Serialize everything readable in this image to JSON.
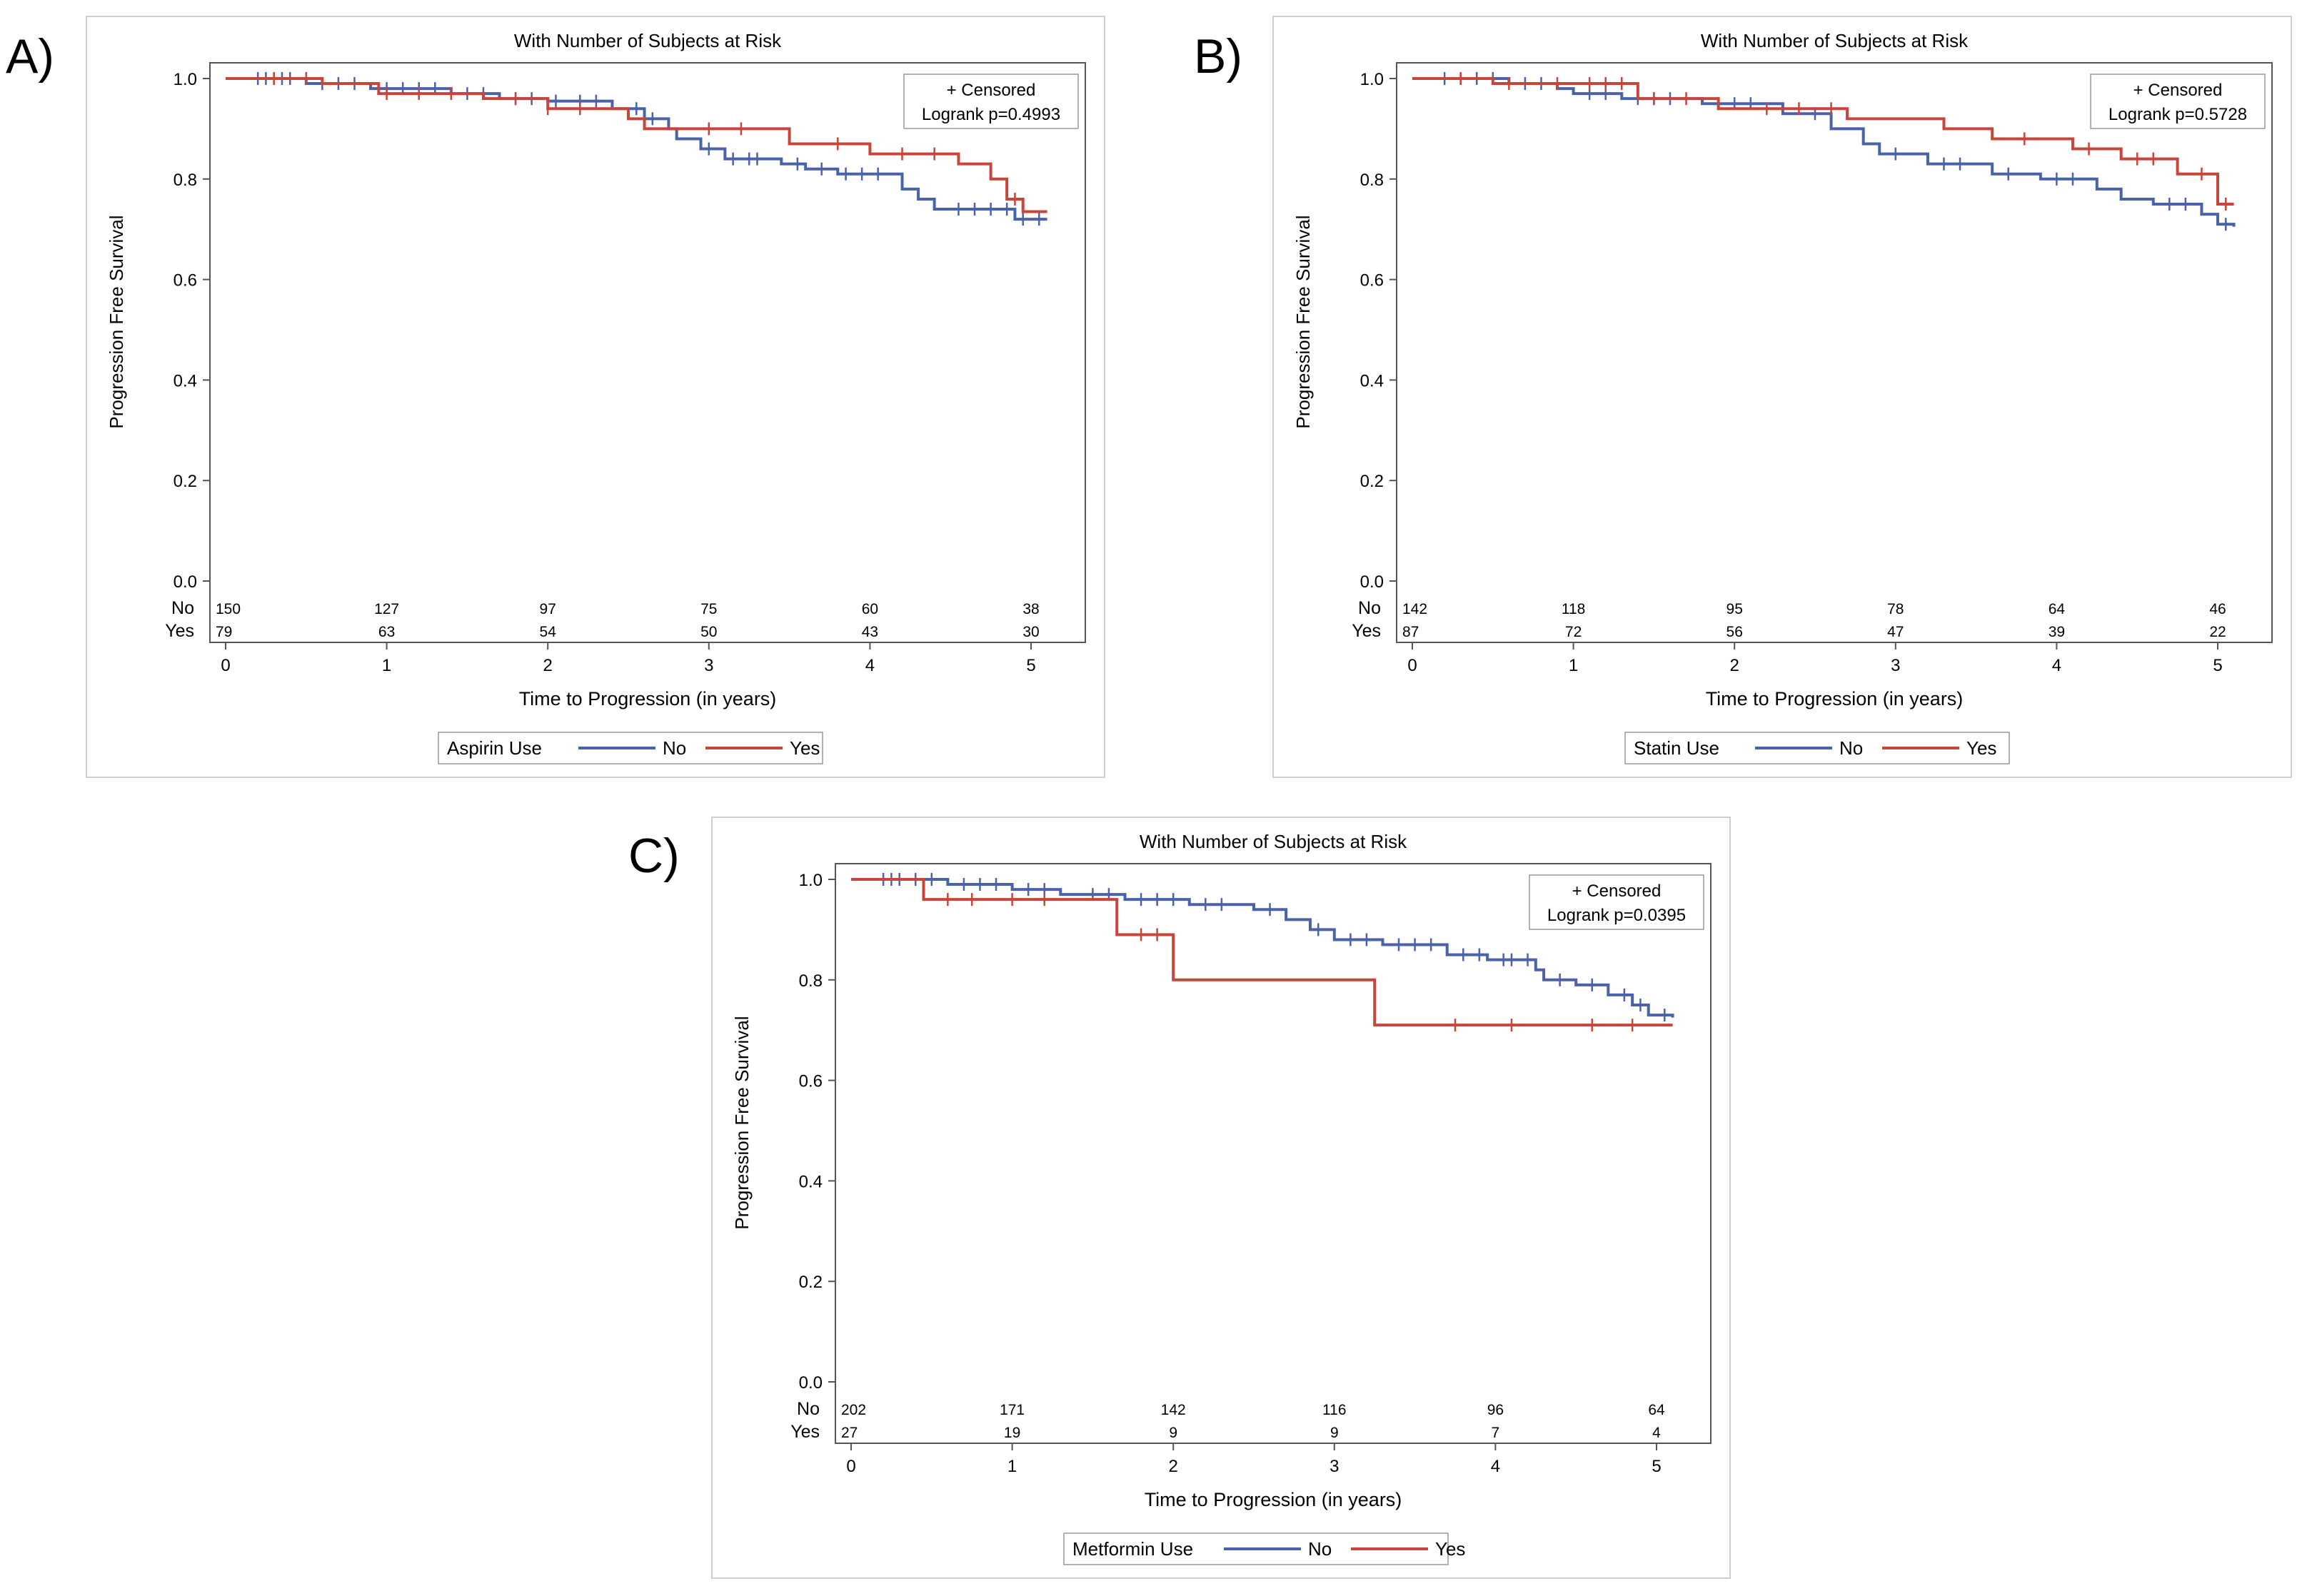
{
  "figure": {
    "panel_labels": [
      "A)",
      "B)",
      "C)"
    ]
  },
  "chart_data": [
    {
      "type": "line",
      "subtype": "kaplan-meier",
      "title": "With Number of Subjects at Risk",
      "xlabel": "Time to Progression (in years)",
      "ylabel": "Progression Free Survival",
      "xlim": [
        0,
        5.1
      ],
      "ylim": [
        0,
        1.0
      ],
      "xticks": [
        "0",
        "1",
        "2",
        "3",
        "4",
        "5"
      ],
      "yticks": [
        "0.0",
        "0.2",
        "0.4",
        "0.6",
        "0.8",
        "1.0"
      ],
      "inset": {
        "censored_label": "+ Censored",
        "pvalue_label": "Logrank p=0.4993",
        "position": "top-right"
      },
      "legend": {
        "title": "Aspirin Use",
        "entries": [
          "No",
          "Yes"
        ],
        "position": "bottom"
      },
      "colors": {
        "No": "#4a62a9",
        "Yes": "#c8453b"
      },
      "series": [
        {
          "name": "No",
          "steps": [
            [
              0,
              1.0
            ],
            [
              0.5,
              0.99
            ],
            [
              0.9,
              0.98
            ],
            [
              1.4,
              0.97
            ],
            [
              1.7,
              0.96
            ],
            [
              2.0,
              0.955
            ],
            [
              2.4,
              0.94
            ],
            [
              2.6,
              0.92
            ],
            [
              2.75,
              0.9
            ],
            [
              2.8,
              0.88
            ],
            [
              2.95,
              0.86
            ],
            [
              3.1,
              0.84
            ],
            [
              3.45,
              0.83
            ],
            [
              3.6,
              0.82
            ],
            [
              3.8,
              0.81
            ],
            [
              4.2,
              0.78
            ],
            [
              4.3,
              0.76
            ],
            [
              4.4,
              0.74
            ],
            [
              4.9,
              0.72
            ],
            [
              5.1,
              0.72
            ]
          ],
          "censored": [
            0.2,
            0.25,
            0.3,
            0.35,
            0.4,
            0.6,
            0.7,
            0.8,
            1.0,
            1.1,
            1.2,
            1.3,
            1.5,
            1.6,
            1.8,
            1.9,
            2.05,
            2.2,
            2.3,
            2.55,
            2.65,
            3.0,
            3.15,
            3.25,
            3.3,
            3.55,
            3.7,
            3.85,
            3.95,
            4.05,
            4.55,
            4.65,
            4.75,
            4.85,
            4.95,
            5.05
          ]
        },
        {
          "name": "Yes",
          "steps": [
            [
              0,
              1.0
            ],
            [
              0.6,
              0.99
            ],
            [
              0.95,
              0.97
            ],
            [
              1.6,
              0.96
            ],
            [
              2.0,
              0.94
            ],
            [
              2.5,
              0.92
            ],
            [
              2.6,
              0.9
            ],
            [
              3.5,
              0.87
            ],
            [
              4.0,
              0.85
            ],
            [
              4.55,
              0.83
            ],
            [
              4.75,
              0.8
            ],
            [
              4.85,
              0.76
            ],
            [
              4.95,
              0.735
            ],
            [
              5.1,
              0.735
            ]
          ],
          "censored": [
            0.3,
            0.5,
            1.0,
            1.2,
            1.4,
            1.8,
            2.0,
            2.2,
            3.0,
            3.2,
            3.8,
            4.2,
            4.4,
            4.9
          ]
        }
      ],
      "at_risk": {
        "rows": [
          {
            "label": "No",
            "values": [
              "150",
              "127",
              "97",
              "75",
              "60",
              "38"
            ]
          },
          {
            "label": "Yes",
            "values": [
              "79",
              "63",
              "54",
              "50",
              "43",
              "30"
            ]
          }
        ]
      }
    },
    {
      "type": "line",
      "subtype": "kaplan-meier",
      "title": "With Number of Subjects at Risk",
      "xlabel": "Time to Progression (in years)",
      "ylabel": "Progression Free Survival",
      "xlim": [
        0,
        5.1
      ],
      "ylim": [
        0,
        1.0
      ],
      "xticks": [
        "0",
        "1",
        "2",
        "3",
        "4",
        "5"
      ],
      "yticks": [
        "0.0",
        "0.2",
        "0.4",
        "0.6",
        "0.8",
        "1.0"
      ],
      "inset": {
        "censored_label": "+ Censored",
        "pvalue_label": "Logrank p=0.5728",
        "position": "top-right"
      },
      "legend": {
        "title": "Statin Use",
        "entries": [
          "No",
          "Yes"
        ],
        "position": "bottom"
      },
      "colors": {
        "No": "#4a62a9",
        "Yes": "#c8453b"
      },
      "series": [
        {
          "name": "No",
          "steps": [
            [
              0,
              1.0
            ],
            [
              0.6,
              0.99
            ],
            [
              0.9,
              0.98
            ],
            [
              1.0,
              0.97
            ],
            [
              1.3,
              0.96
            ],
            [
              1.8,
              0.95
            ],
            [
              2.3,
              0.93
            ],
            [
              2.6,
              0.9
            ],
            [
              2.8,
              0.87
            ],
            [
              2.9,
              0.85
            ],
            [
              3.2,
              0.83
            ],
            [
              3.6,
              0.81
            ],
            [
              3.9,
              0.8
            ],
            [
              4.25,
              0.78
            ],
            [
              4.4,
              0.76
            ],
            [
              4.6,
              0.75
            ],
            [
              4.9,
              0.73
            ],
            [
              5.0,
              0.71
            ],
            [
              5.1,
              0.705
            ]
          ],
          "censored": [
            0.2,
            0.3,
            0.4,
            0.5,
            0.7,
            0.8,
            1.1,
            1.2,
            1.4,
            1.5,
            1.6,
            1.9,
            2.0,
            2.1,
            2.5,
            3.0,
            3.3,
            3.4,
            3.7,
            4.0,
            4.1,
            4.7,
            4.8,
            5.05
          ]
        },
        {
          "name": "Yes",
          "steps": [
            [
              0,
              1.0
            ],
            [
              0.5,
              0.99
            ],
            [
              1.4,
              0.96
            ],
            [
              1.9,
              0.94
            ],
            [
              2.7,
              0.92
            ],
            [
              3.3,
              0.9
            ],
            [
              3.6,
              0.88
            ],
            [
              4.1,
              0.86
            ],
            [
              4.4,
              0.84
            ],
            [
              4.75,
              0.81
            ],
            [
              5.0,
              0.75
            ],
            [
              5.1,
              0.75
            ]
          ],
          "censored": [
            0.3,
            0.6,
            0.9,
            1.1,
            1.2,
            1.3,
            1.5,
            1.7,
            2.2,
            2.4,
            2.6,
            3.8,
            4.2,
            4.5,
            4.6,
            4.9,
            5.05
          ]
        }
      ],
      "at_risk": {
        "rows": [
          {
            "label": "No",
            "values": [
              "142",
              "118",
              "95",
              "78",
              "64",
              "46"
            ]
          },
          {
            "label": "Yes",
            "values": [
              "87",
              "72",
              "56",
              "47",
              "39",
              "22"
            ]
          }
        ]
      }
    },
    {
      "type": "line",
      "subtype": "kaplan-meier",
      "title": "With Number of Subjects at Risk",
      "xlabel": "Time to Progression (in years)",
      "ylabel": "Progression Free Survival",
      "xlim": [
        0,
        5.1
      ],
      "ylim": [
        0,
        1.0
      ],
      "xticks": [
        "0",
        "1",
        "2",
        "3",
        "4",
        "5"
      ],
      "yticks": [
        "0.0",
        "0.2",
        "0.4",
        "0.6",
        "0.8",
        "1.0"
      ],
      "inset": {
        "censored_label": "+ Censored",
        "pvalue_label": "Logrank p=0.0395",
        "position": "top-right"
      },
      "legend": {
        "title": "Metformin Use",
        "entries": [
          "No",
          "Yes"
        ],
        "position": "bottom"
      },
      "colors": {
        "No": "#4a62a9",
        "Yes": "#c8453b"
      },
      "series": [
        {
          "name": "No",
          "steps": [
            [
              0,
              1.0
            ],
            [
              0.6,
              0.99
            ],
            [
              1.0,
              0.98
            ],
            [
              1.3,
              0.97
            ],
            [
              1.7,
              0.96
            ],
            [
              2.1,
              0.95
            ],
            [
              2.5,
              0.94
            ],
            [
              2.7,
              0.92
            ],
            [
              2.85,
              0.9
            ],
            [
              3.0,
              0.88
            ],
            [
              3.3,
              0.87
            ],
            [
              3.7,
              0.85
            ],
            [
              3.95,
              0.84
            ],
            [
              4.25,
              0.82
            ],
            [
              4.3,
              0.8
            ],
            [
              4.5,
              0.79
            ],
            [
              4.7,
              0.77
            ],
            [
              4.85,
              0.75
            ],
            [
              4.95,
              0.73
            ],
            [
              5.1,
              0.725
            ]
          ],
          "censored": [
            0.2,
            0.25,
            0.3,
            0.4,
            0.5,
            0.7,
            0.8,
            0.9,
            1.1,
            1.2,
            1.5,
            1.6,
            1.8,
            1.9,
            2.0,
            2.2,
            2.3,
            2.6,
            2.9,
            3.1,
            3.2,
            3.4,
            3.5,
            3.6,
            3.8,
            3.9,
            4.05,
            4.1,
            4.2,
            4.4,
            4.6,
            4.8,
            4.9,
            5.05
          ]
        },
        {
          "name": "Yes",
          "steps": [
            [
              0,
              1.0
            ],
            [
              0.45,
              0.96
            ],
            [
              1.65,
              0.89
            ],
            [
              2.0,
              0.8
            ],
            [
              3.25,
              0.71
            ],
            [
              5.1,
              0.71
            ]
          ],
          "censored": [
            0.6,
            0.75,
            1.0,
            1.2,
            1.8,
            1.9,
            3.75,
            4.1,
            4.6,
            4.85
          ]
        }
      ],
      "at_risk": {
        "rows": [
          {
            "label": "No",
            "values": [
              "202",
              "171",
              "142",
              "116",
              "96",
              "64"
            ]
          },
          {
            "label": "Yes",
            "values": [
              "27",
              "19",
              "9",
              "9",
              "7",
              "4"
            ]
          }
        ]
      }
    }
  ]
}
